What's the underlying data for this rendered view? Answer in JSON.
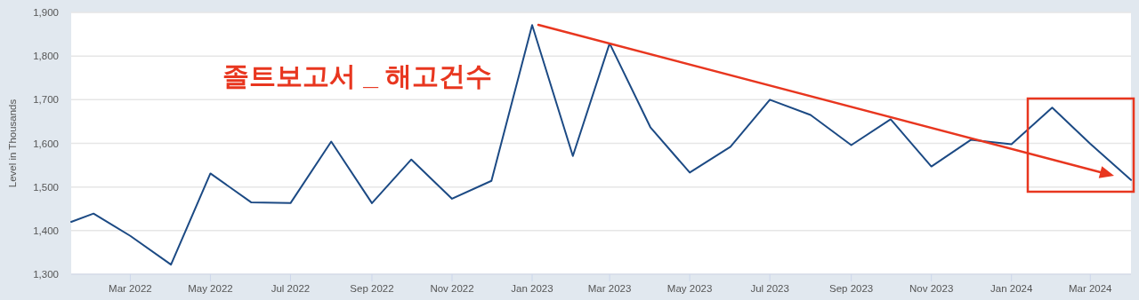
{
  "chart_data": {
    "type": "line",
    "ylabel": "Level in Thousands",
    "annotations": [
      "졸트보고서 _ 해고건수"
    ],
    "xlim": [
      "2022-01-15",
      "2024-04-01"
    ],
    "xticks": [
      {
        "value": "2022-03-01",
        "label": "Mar 2022"
      },
      {
        "value": "2022-05-01",
        "label": "May 2022"
      },
      {
        "value": "2022-07-01",
        "label": "Jul 2022"
      },
      {
        "value": "2022-09-01",
        "label": "Sep 2022"
      },
      {
        "value": "2022-11-01",
        "label": "Nov 2022"
      },
      {
        "value": "2023-01-01",
        "label": "Jan 2023"
      },
      {
        "value": "2023-03-01",
        "label": "Mar 2023"
      },
      {
        "value": "2023-05-01",
        "label": "May 2023"
      },
      {
        "value": "2023-07-01",
        "label": "Jul 2023"
      },
      {
        "value": "2023-09-01",
        "label": "Sep 2023"
      },
      {
        "value": "2023-11-01",
        "label": "Nov 2023"
      },
      {
        "value": "2024-01-01",
        "label": "Jan 2024"
      },
      {
        "value": "2024-03-01",
        "label": "Mar 2024"
      }
    ],
    "ylim": [
      1300,
      1900
    ],
    "yticks": [
      {
        "value": 1300,
        "label": "1,300"
      },
      {
        "value": 1400,
        "label": "1,400"
      },
      {
        "value": 1500,
        "label": "1,500"
      },
      {
        "value": 1600,
        "label": "1,600"
      },
      {
        "value": 1700,
        "label": "1,700"
      },
      {
        "value": 1800,
        "label": "1,800"
      },
      {
        "value": 1900,
        "label": "1,900"
      }
    ],
    "grid": "y",
    "series": [
      {
        "color": "#1c4a84",
        "x": [
          "2022-01-15",
          "2022-02-01",
          "2022-03-01",
          "2022-04-01",
          "2022-05-01",
          "2022-06-01",
          "2022-07-01",
          "2022-08-01",
          "2022-09-01",
          "2022-10-01",
          "2022-11-01",
          "2022-12-01",
          "2023-01-01",
          "2023-02-01",
          "2023-03-01",
          "2023-04-01",
          "2023-05-01",
          "2023-06-01",
          "2023-07-01",
          "2023-08-01",
          "2023-09-01",
          "2023-10-01",
          "2023-11-01",
          "2023-12-01",
          "2024-01-01",
          "2024-02-01",
          "2024-03-01",
          "2024-04-01"
        ],
        "values": [
          1420,
          1439,
          1388,
          1322,
          1531,
          1465,
          1463,
          1604,
          1463,
          1563,
          1473,
          1514,
          1871,
          1571,
          1829,
          1637,
          1533,
          1592,
          1700,
          1665,
          1596,
          1655,
          1547,
          1608,
          1598,
          1682,
          1599,
          1516
        ]
      }
    ]
  }
}
